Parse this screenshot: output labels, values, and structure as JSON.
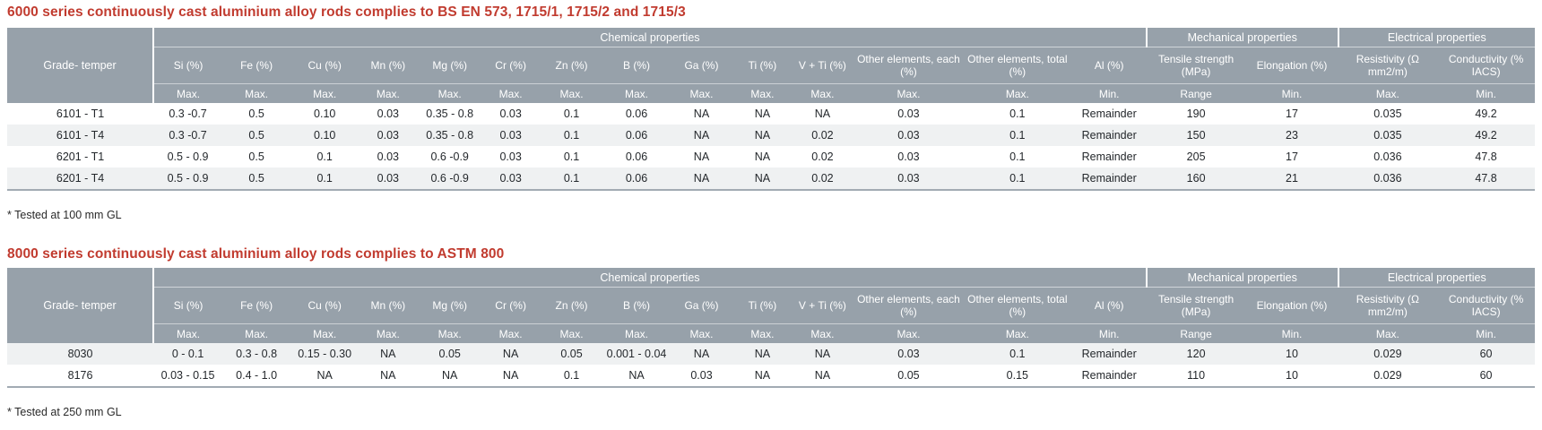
{
  "colors": {
    "title_red": "#c13b2f",
    "header_gray": "#97a1aa",
    "limit_row_gray": "#a8afb7",
    "alt_row_gray": "#eff1f2",
    "table_bottom_border": "#a2abb3",
    "header_text": "#ffffff",
    "data_text": "#24282c"
  },
  "tables": [
    {
      "title": "6000 series continuously cast aluminium alloy rods complies to BS EN 573, 1715/1, 1715/2 and 1715/3",
      "footnote": "* Tested at 100 mm GL",
      "header": {
        "grade_label": "Grade- temper",
        "groups": [
          {
            "label": "Chemical properties",
            "span": 14
          },
          {
            "label": "Mechanical properties",
            "span": 2
          },
          {
            "label": "Electrical properties",
            "span": 2
          }
        ],
        "columns": [
          "Si (%)",
          "Fe (%)",
          "Cu (%)",
          "Mn (%)",
          "Mg (%)",
          "Cr (%)",
          "Zn (%)",
          "B (%)",
          "Ga (%)",
          "Ti (%)",
          "V + Ti (%)",
          "Other elements, each (%)",
          "Other elements, total (%)",
          "Al (%)",
          "Tensile strength (MPa)",
          "Elongation (%)",
          "Resistivity (Ω mm2/m)",
          "Conductivity (% IACS)"
        ],
        "limits": [
          "Max.",
          "Max.",
          "Max.",
          "Max.",
          "Max.",
          "Max.",
          "Max.",
          "Max.",
          "Max.",
          "Max.",
          "Max.",
          "Max.",
          "Max.",
          "Min.",
          "Range",
          "Min.",
          "Max.",
          "Min."
        ]
      },
      "rows": [
        {
          "grade": "6101 - T1",
          "values": [
            "0.3 -0.7",
            "0.5",
            "0.10",
            "0.03",
            "0.35 - 0.8",
            "0.03",
            "0.1",
            "0.06",
            "NA",
            "NA",
            "NA",
            "0.03",
            "0.1",
            "Remainder",
            "190",
            "17",
            "0.035",
            "49.2"
          ]
        },
        {
          "grade": "6101 - T4",
          "values": [
            "0.3 -0.7",
            "0.5",
            "0.10",
            "0.03",
            "0.35 - 0.8",
            "0.03",
            "0.1",
            "0.06",
            "NA",
            "NA",
            "0.02",
            "0.03",
            "0.1",
            "Remainder",
            "150",
            "23",
            "0.035",
            "49.2"
          ]
        },
        {
          "grade": "6201 - T1",
          "values": [
            "0.5 - 0.9",
            "0.5",
            "0.1",
            "0.03",
            "0.6 -0.9",
            "0.03",
            "0.1",
            "0.06",
            "NA",
            "NA",
            "0.02",
            "0.03",
            "0.1",
            "Remainder",
            "205",
            "17",
            "0.036",
            "47.8"
          ]
        },
        {
          "grade": "6201 - T4",
          "values": [
            "0.5 - 0.9",
            "0.5",
            "0.1",
            "0.03",
            "0.6 -0.9",
            "0.03",
            "0.1",
            "0.06",
            "NA",
            "NA",
            "0.02",
            "0.03",
            "0.1",
            "Remainder",
            "160",
            "21",
            "0.036",
            "47.8"
          ]
        }
      ]
    },
    {
      "title": "8000 series continuously cast aluminium alloy rods complies to ASTM 800",
      "footnote": "* Tested at 250 mm GL",
      "header": {
        "grade_label": "Grade- temper",
        "groups": [
          {
            "label": "Chemical properties",
            "span": 14
          },
          {
            "label": "Mechanical properties",
            "span": 2
          },
          {
            "label": "Electrical properties",
            "span": 2
          }
        ],
        "columns": [
          "Si (%)",
          "Fe (%)",
          "Cu (%)",
          "Mn (%)",
          "Mg (%)",
          "Cr (%)",
          "Zn (%)",
          "B (%)",
          "Ga (%)",
          "Ti (%)",
          "V + Ti (%)",
          "Other elements, each (%)",
          "Other elements, total (%)",
          "Al (%)",
          "Tensile strength (MPa)",
          "Elongation (%)",
          "Resistivity (Ω mm2/m)",
          "Conductivity (% IACS)"
        ],
        "limits": [
          "Max.",
          "Max.",
          "Max.",
          "Max.",
          "Max.",
          "Max.",
          "Max.",
          "Max.",
          "Max.",
          "Max.",
          "Max.",
          "Max.",
          "Max.",
          "Min.",
          "Range",
          "Min.",
          "Max.",
          "Min."
        ]
      },
      "rows": [
        {
          "grade": "8030",
          "values": [
            "0 - 0.1",
            "0.3 - 0.8",
            "0.15 - 0.30",
            "NA",
            "0.05",
            "NA",
            "0.05",
            "0.001 - 0.04",
            "NA",
            "NA",
            "NA",
            "0.03",
            "0.1",
            "Remainder",
            "120",
            "10",
            "0.029",
            "60"
          ]
        },
        {
          "grade": "8176",
          "values": [
            "0.03 - 0.15",
            "0.4 - 1.0",
            "NA",
            "NA",
            "NA",
            "NA",
            "0.1",
            "NA",
            "0.03",
            "NA",
            "NA",
            "0.05",
            "0.15",
            "Remainder",
            "110",
            "10",
            "0.029",
            "60"
          ]
        }
      ]
    }
  ]
}
